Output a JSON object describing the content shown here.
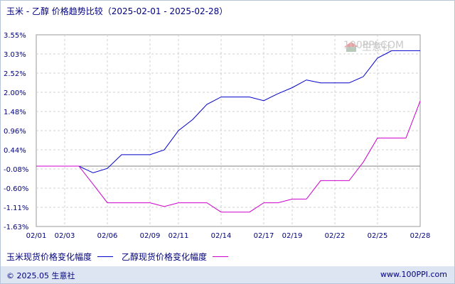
{
  "title": "玉米 - 乙醇 价格趋势比较（2025-02-01 - 2025-02-28）",
  "watermark": {
    "text": "生意社",
    "sub": "100PPI.COM"
  },
  "footer": {
    "left": "© 2025.05 生意社",
    "right": "www.100PPI.com"
  },
  "colors": {
    "series1": "#0000cc",
    "series2": "#cc00cc",
    "grid": "#d0d0d0"
  },
  "chart_data": {
    "type": "line",
    "x": [
      "02/01",
      "02/02",
      "02/03",
      "02/04",
      "02/05",
      "02/06",
      "02/07",
      "02/08",
      "02/09",
      "02/10",
      "02/11",
      "02/12",
      "02/13",
      "02/14",
      "02/15",
      "02/16",
      "02/17",
      "02/18",
      "02/19",
      "02/20",
      "02/21",
      "02/22",
      "02/23",
      "02/24",
      "02/25",
      "02/26",
      "02/27",
      "02/28"
    ],
    "xticks": [
      "02/01",
      "02/03",
      "02/06",
      "02/09",
      "02/11",
      "02/14",
      "02/17",
      "02/19",
      "02/22",
      "02/25",
      "02/28"
    ],
    "yticks": [
      "3.55%",
      "3.03%",
      "2.52%",
      "2.00%",
      "1.48%",
      "0.96%",
      "0.44%",
      "-0.08%",
      "-0.60%",
      "-1.11%",
      "-1.63%"
    ],
    "ylim": [
      -1.63,
      3.55
    ],
    "grid": true,
    "legend_position": "bottom-left",
    "series": [
      {
        "name": "玉米现货价格变化幅度",
        "values": [
          0,
          0,
          0,
          0,
          -0.18,
          -0.06,
          0.31,
          0.31,
          0.31,
          0.44,
          0.96,
          1.26,
          1.67,
          1.87,
          1.87,
          1.87,
          1.77,
          1.96,
          2.12,
          2.33,
          2.25,
          2.25,
          2.25,
          2.42,
          2.92,
          3.12,
          3.12,
          3.12
        ]
      },
      {
        "name": "乙醇现货价格变化幅度",
        "values": [
          0,
          0,
          0,
          0,
          -0.49,
          -0.99,
          -0.99,
          -0.99,
          -0.99,
          -1.09,
          -0.99,
          -0.99,
          -0.99,
          -1.24,
          -1.24,
          -1.24,
          -0.99,
          -0.99,
          -0.89,
          -0.89,
          -0.39,
          -0.39,
          -0.39,
          0.11,
          0.76,
          0.76,
          0.76,
          1.76
        ]
      }
    ]
  }
}
